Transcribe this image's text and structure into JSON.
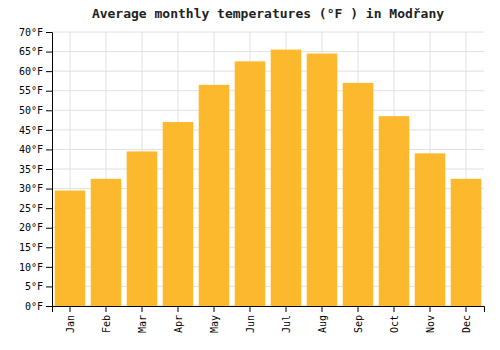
{
  "chart_data": {
    "type": "bar",
    "title": "Average monthly temperatures (°F ) in Modřany",
    "categories": [
      "Jan",
      "Feb",
      "Mar",
      "Apr",
      "May",
      "Jun",
      "Jul",
      "Aug",
      "Sep",
      "Oct",
      "Nov",
      "Dec"
    ],
    "values": [
      29.5,
      32.5,
      39.5,
      47.0,
      56.5,
      62.5,
      65.5,
      64.5,
      57.0,
      48.5,
      39.0,
      32.5
    ],
    "color": "#FDB92E",
    "ylim": [
      0,
      70
    ],
    "yticks": [
      {
        "value": 0,
        "label": "0°F"
      },
      {
        "value": 5,
        "label": "5°F"
      },
      {
        "value": 10,
        "label": "10°F"
      },
      {
        "value": 15,
        "label": "15°F"
      },
      {
        "value": 20,
        "label": "20°F"
      },
      {
        "value": 25,
        "label": "25°F"
      },
      {
        "value": 30,
        "label": "30°F"
      },
      {
        "value": 35,
        "label": "35°F"
      },
      {
        "value": 40,
        "label": "40°F"
      },
      {
        "value": 45,
        "label": "45°F"
      },
      {
        "value": 50,
        "label": "50°F"
      },
      {
        "value": 55,
        "label": "55°F"
      },
      {
        "value": 60,
        "label": "60°F"
      },
      {
        "value": 65,
        "label": "65°F"
      },
      {
        "value": 70,
        "label": "70°F"
      }
    ],
    "grid": true
  }
}
